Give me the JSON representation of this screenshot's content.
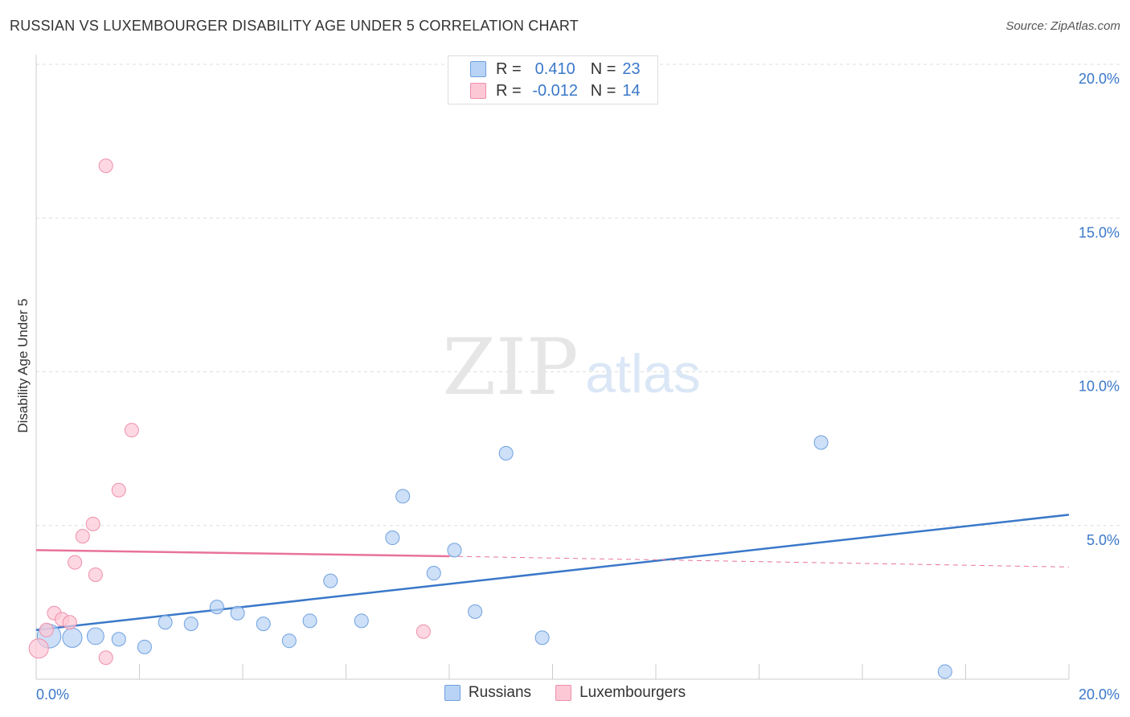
{
  "title": "RUSSIAN VS LUXEMBOURGER DISABILITY AGE UNDER 5 CORRELATION CHART",
  "source": "Source: ZipAtlas.com",
  "watermark": {
    "zip": "ZIP",
    "atlas": "atlas"
  },
  "legend": {
    "r_label": "R =",
    "n_label": "N =",
    "rows": [
      {
        "r": "0.410",
        "n": "23",
        "fill": "#b8d3f5",
        "stroke": "#6fa0de"
      },
      {
        "r": "-0.012",
        "n": "14",
        "fill": "#fcc8d6",
        "stroke": "#ee8fab"
      }
    ]
  },
  "bottom_legend": [
    "Russians",
    "Luxembourgers"
  ],
  "colors": {
    "blue": "#3a78c9",
    "pink": "#e8739a",
    "grid": "#dddddd"
  },
  "chart_data": {
    "type": "scatter",
    "title": "RUSSIAN VS LUXEMBOURGER DISABILITY AGE UNDER 5 CORRELATION CHART",
    "xlabel": "",
    "ylabel": "Disability Age Under 5",
    "xlim": [
      0,
      20
    ],
    "ylim": [
      0,
      20
    ],
    "x_tick_labels": [
      "0.0%",
      "20.0%"
    ],
    "y_tick_labels": [
      "5.0%",
      "10.0%",
      "15.0%",
      "20.0%"
    ],
    "y_tick_values": [
      5,
      10,
      15,
      20
    ],
    "series": [
      {
        "name": "Russians",
        "r": 0.41,
        "n": 23,
        "points": [
          {
            "x": 0.25,
            "y": 1.4,
            "s": 3
          },
          {
            "x": 0.7,
            "y": 1.35,
            "s": 2
          },
          {
            "x": 1.15,
            "y": 1.4,
            "s": 1.5
          },
          {
            "x": 1.6,
            "y": 1.3,
            "s": 1
          },
          {
            "x": 2.1,
            "y": 1.05,
            "s": 1
          },
          {
            "x": 2.5,
            "y": 1.85,
            "s": 1
          },
          {
            "x": 3.0,
            "y": 1.8,
            "s": 1
          },
          {
            "x": 3.5,
            "y": 2.35,
            "s": 1
          },
          {
            "x": 3.9,
            "y": 2.15,
            "s": 1
          },
          {
            "x": 4.4,
            "y": 1.8,
            "s": 1
          },
          {
            "x": 4.9,
            "y": 1.25,
            "s": 1
          },
          {
            "x": 5.3,
            "y": 1.9,
            "s": 1
          },
          {
            "x": 5.7,
            "y": 3.2,
            "s": 1
          },
          {
            "x": 6.3,
            "y": 1.9,
            "s": 1
          },
          {
            "x": 6.9,
            "y": 4.6,
            "s": 1
          },
          {
            "x": 7.1,
            "y": 5.95,
            "s": 1
          },
          {
            "x": 7.7,
            "y": 3.45,
            "s": 1
          },
          {
            "x": 8.1,
            "y": 4.2,
            "s": 1
          },
          {
            "x": 8.5,
            "y": 2.2,
            "s": 1
          },
          {
            "x": 9.1,
            "y": 7.35,
            "s": 1
          },
          {
            "x": 9.8,
            "y": 1.35,
            "s": 1
          },
          {
            "x": 15.2,
            "y": 7.7,
            "s": 1
          },
          {
            "x": 17.6,
            "y": 0.25,
            "s": 1
          }
        ],
        "trend": {
          "x1": 0,
          "y1": 1.6,
          "x2": 20,
          "y2": 5.35
        }
      },
      {
        "name": "Luxembourgers",
        "r": -0.012,
        "n": 14,
        "points": [
          {
            "x": 0.05,
            "y": 1.0,
            "s": 2
          },
          {
            "x": 0.2,
            "y": 1.6,
            "s": 1
          },
          {
            "x": 0.35,
            "y": 2.15,
            "s": 1
          },
          {
            "x": 0.5,
            "y": 1.95,
            "s": 1
          },
          {
            "x": 0.65,
            "y": 1.85,
            "s": 1
          },
          {
            "x": 0.75,
            "y": 3.8,
            "s": 1
          },
          {
            "x": 0.9,
            "y": 4.65,
            "s": 1
          },
          {
            "x": 1.1,
            "y": 5.05,
            "s": 1
          },
          {
            "x": 1.15,
            "y": 3.4,
            "s": 1
          },
          {
            "x": 1.35,
            "y": 0.7,
            "s": 1
          },
          {
            "x": 1.35,
            "y": 16.7,
            "s": 1
          },
          {
            "x": 1.6,
            "y": 6.15,
            "s": 1
          },
          {
            "x": 1.85,
            "y": 8.1,
            "s": 1
          },
          {
            "x": 7.5,
            "y": 1.55,
            "s": 1
          }
        ],
        "trend": {
          "x1": 0,
          "y1": 4.2,
          "x2": 8.0,
          "y2": 4.0,
          "dash_to_x": 20,
          "dash_to_y": 3.65
        }
      }
    ]
  }
}
